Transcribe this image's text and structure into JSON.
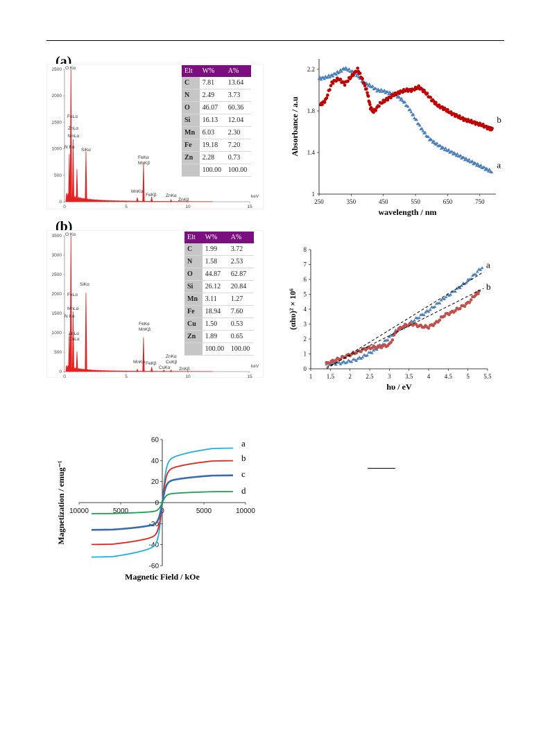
{
  "panels": {
    "a_label": "(a)",
    "b_label": "(b)"
  },
  "edx_a": {
    "headers": [
      "Elt",
      "W%",
      "A%"
    ],
    "rows": [
      [
        "C",
        "7.81",
        "13.64"
      ],
      [
        "N",
        "2.49",
        "3.73"
      ],
      [
        "O",
        "46.07",
        "60.36"
      ],
      [
        "Si",
        "16.13",
        "12.04"
      ],
      [
        "Mn",
        "6.03",
        "2.30"
      ],
      [
        "Fe",
        "19.18",
        "7.20"
      ],
      [
        "Zn",
        "2.28",
        "0.73"
      ],
      [
        "",
        "100.00",
        "100.00"
      ]
    ],
    "y_ticks": [
      "2500",
      "2000",
      "1500",
      "1000",
      "500",
      "0"
    ],
    "x_ticks": [
      "0",
      "5",
      "10",
      "15"
    ],
    "x_unit": "keV",
    "peak_labels": [
      "O Kα",
      "FeLα",
      "ZnLα",
      "MnLα",
      "N Kα",
      "SiKα",
      "FeKα",
      "MnKβ",
      "MnKα",
      "FeKβ",
      "ZnKα",
      "ZnKβ"
    ]
  },
  "edx_b": {
    "headers": [
      "Elt",
      "W%",
      "A%"
    ],
    "rows": [
      [
        "C",
        "1.99",
        "3.72"
      ],
      [
        "N",
        "1.58",
        "2.53"
      ],
      [
        "O",
        "44.87",
        "62.87"
      ],
      [
        "Si",
        "26.12",
        "20.84"
      ],
      [
        "Mn",
        "3.11",
        "1.27"
      ],
      [
        "Fe",
        "18.94",
        "7.60"
      ],
      [
        "Cu",
        "1.50",
        "0.53"
      ],
      [
        "Zn",
        "1.89",
        "0.65"
      ],
      [
        "",
        "100.00",
        "100.00"
      ]
    ],
    "y_ticks": [
      "3500",
      "3000",
      "2500",
      "2000",
      "1500",
      "1000",
      "500",
      "0"
    ],
    "x_ticks": [
      "0",
      "5",
      "10",
      "15"
    ],
    "x_unit": "keV",
    "peak_labels": [
      "O Kα",
      "FeLα",
      "MnLα",
      "N Kα",
      "ZnLα",
      "CuLα",
      "SiKα",
      "FeKα",
      "MnKβ",
      "MnKα",
      "FeKβ",
      "CuKα",
      "ZnKα",
      "CuKβ",
      "ZnKβ"
    ]
  },
  "chart_data": [
    {
      "type": "bar",
      "title": "(a)",
      "xlabel": "keV",
      "xlim": [
        0,
        15
      ],
      "ylim": [
        0,
        2500
      ],
      "peaks": [
        {
          "label": "O Kα",
          "x": 0.52,
          "y": 2500
        },
        {
          "label": "FeLα",
          "x": 0.7,
          "y": 1180
        },
        {
          "label": "N Kα",
          "x": 0.39,
          "y": 900
        },
        {
          "label": "ZnLα",
          "x": 1.01,
          "y": 620
        },
        {
          "label": "SiKα",
          "x": 1.74,
          "y": 950
        },
        {
          "label": "MnKα",
          "x": 5.9,
          "y": 80
        },
        {
          "label": "FeKα",
          "x": 6.4,
          "y": 740
        },
        {
          "label": "FeKβ",
          "x": 7.06,
          "y": 90
        },
        {
          "label": "ZnKα",
          "x": 8.63,
          "y": 40
        }
      ]
    },
    {
      "type": "bar",
      "title": "(b)",
      "xlabel": "keV",
      "xlim": [
        0,
        15
      ],
      "ylim": [
        0,
        3500
      ],
      "peaks": [
        {
          "label": "O Kα",
          "x": 0.52,
          "y": 3500
        },
        {
          "label": "FeLα",
          "x": 0.7,
          "y": 1550
        },
        {
          "label": "N Kα",
          "x": 0.39,
          "y": 1000
        },
        {
          "label": "ZnLα",
          "x": 1.01,
          "y": 520
        },
        {
          "label": "SiKα",
          "x": 1.74,
          "y": 2030
        },
        {
          "label": "MnKα",
          "x": 5.9,
          "y": 60
        },
        {
          "label": "FeKα",
          "x": 6.4,
          "y": 880
        },
        {
          "label": "FeKβ",
          "x": 7.06,
          "y": 120
        },
        {
          "label": "CuKα",
          "x": 8.05,
          "y": 40
        },
        {
          "label": "ZnKα",
          "x": 8.63,
          "y": 40
        }
      ]
    },
    {
      "type": "scatter",
      "xlabel": "wavelength / nm",
      "ylabel": "Absorbance / a.u",
      "xlim": [
        250,
        800
      ],
      "ylim": [
        1,
        2.3
      ],
      "x_ticks": [
        250,
        350,
        450,
        550,
        650,
        750
      ],
      "y_ticks": [
        1,
        1.4,
        1.8,
        2.2
      ],
      "series": [
        {
          "name": "a",
          "color": "#4a7ebb",
          "x": [
            250,
            270,
            290,
            310,
            330,
            350,
            370,
            390,
            410,
            430,
            450,
            470,
            490,
            510,
            530,
            550,
            570,
            590,
            610,
            630,
            650,
            670,
            690,
            710,
            730,
            750,
            770,
            790
          ],
          "y": [
            2.11,
            2.12,
            2.14,
            2.17,
            2.21,
            2.18,
            2.14,
            2.07,
            2.04,
            2.0,
            1.99,
            1.97,
            1.95,
            1.9,
            1.82,
            1.72,
            1.62,
            1.54,
            1.49,
            1.45,
            1.42,
            1.39,
            1.36,
            1.33,
            1.3,
            1.27,
            1.24,
            1.21
          ]
        },
        {
          "name": "b",
          "color": "#c00000",
          "x": [
            255,
            270,
            290,
            310,
            330,
            350,
            370,
            385,
            400,
            410,
            420,
            440,
            460,
            480,
            500,
            520,
            540,
            560,
            580,
            600,
            620,
            640,
            660,
            680,
            700,
            720,
            740,
            760,
            780,
            790
          ],
          "y": [
            1.86,
            1.9,
            2.07,
            2.11,
            2.06,
            2.13,
            2.2,
            2.1,
            1.98,
            1.83,
            1.79,
            1.87,
            1.91,
            1.95,
            1.98,
            2.0,
            2.0,
            2.03,
            1.98,
            1.91,
            1.85,
            1.82,
            1.78,
            1.75,
            1.72,
            1.7,
            1.68,
            1.66,
            1.63,
            1.62
          ]
        }
      ]
    },
    {
      "type": "scatter",
      "xlabel": "hυ / eV",
      "ylabel": "(αhυ)² × 10⁶",
      "xlim": [
        1,
        5.5
      ],
      "ylim": [
        0,
        8
      ],
      "x_ticks": [
        1,
        1.5,
        2,
        2.5,
        3,
        3.5,
        4,
        4.5,
        5,
        5.5
      ],
      "y_ticks": [
        0,
        1,
        2,
        3,
        4,
        5,
        6,
        7,
        8
      ],
      "series": [
        {
          "name": "a",
          "color": "#4a7ebb",
          "x": [
            1.4,
            1.6,
            1.8,
            2.0,
            2.2,
            2.4,
            2.6,
            2.8,
            3.0,
            3.2,
            3.4,
            3.6,
            3.8,
            4.0,
            4.2,
            4.4,
            4.6,
            4.8,
            5.0,
            5.2,
            5.4
          ],
          "y": [
            0.3,
            0.35,
            0.4,
            0.5,
            0.65,
            0.9,
            1.2,
            1.6,
            2.1,
            2.6,
            2.85,
            3.2,
            3.55,
            3.9,
            4.3,
            4.75,
            5.1,
            5.5,
            5.9,
            6.4,
            6.9
          ]
        },
        {
          "name": "b",
          "color": "#c0504d",
          "x": [
            1.4,
            1.6,
            1.8,
            2.0,
            2.2,
            2.4,
            2.6,
            2.8,
            3.0,
            3.2,
            3.4,
            3.6,
            3.8,
            4.0,
            4.2,
            4.4,
            4.6,
            4.8,
            5.0,
            5.2,
            5.3
          ],
          "y": [
            0.35,
            0.55,
            0.75,
            0.95,
            1.15,
            1.35,
            1.45,
            1.5,
            1.6,
            2.6,
            2.9,
            3.0,
            2.85,
            2.8,
            3.1,
            3.6,
            3.8,
            4.1,
            4.4,
            5.0,
            5.2
          ]
        }
      ],
      "fits": [
        {
          "name": "a",
          "x": [
            1.4,
            5.4
          ],
          "y": [
            0.0,
            6.5
          ]
        },
        {
          "name": "b",
          "x": [
            1.4,
            5.4
          ],
          "y": [
            0.1,
            5.4
          ]
        }
      ]
    },
    {
      "type": "line",
      "xlabel": "Magnetic Field / kOe",
      "ylabel": "Magnetization / emug⁻¹",
      "xlim": [
        -10000,
        10000
      ],
      "ylim": [
        -60,
        60
      ],
      "x_ticks": [
        -10000,
        -5000,
        0,
        5000,
        10000
      ],
      "x_tick_labels": [
        "10000",
        "5000",
        "0",
        "5000",
        "10000"
      ],
      "y_ticks": [
        -60,
        -40,
        -20,
        0,
        20,
        40,
        60
      ],
      "series": [
        {
          "name": "a",
          "color": "#1fb0e3",
          "ms": 52
        },
        {
          "name": "b",
          "color": "#e8221b",
          "ms": 40
        },
        {
          "name": "c",
          "color": "#3a6cb0",
          "ms": 26
        },
        {
          "name": "d",
          "color": "#1aa052",
          "ms": 10.5
        }
      ],
      "x_range": [
        -8500,
        8500
      ]
    }
  ]
}
